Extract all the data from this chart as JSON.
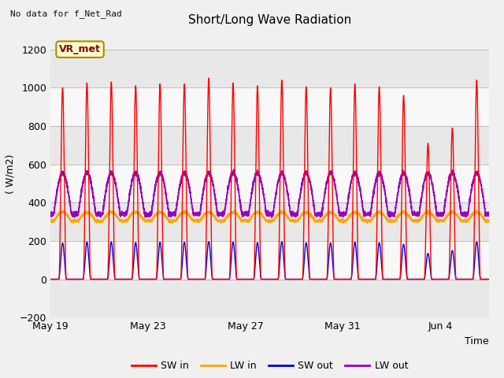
{
  "title": "Short/Long Wave Radiation",
  "xlabel": "Time",
  "ylabel": "( W/m2)",
  "top_left_text": "No data for f_Net_Rad",
  "legend_label": "VR_met",
  "ylim": [
    -200,
    1300
  ],
  "yticks": [
    -200,
    0,
    200,
    400,
    600,
    800,
    1000,
    1200
  ],
  "xtick_labels": [
    "May 19",
    "May 23",
    "May 27",
    "May 31",
    "Jun 4"
  ],
  "xtick_days": [
    0,
    4,
    8,
    12,
    16
  ],
  "n_days": 18,
  "colors": {
    "SW_in": "#ff0000",
    "LW_in": "#ffa500",
    "SW_out": "#0000dd",
    "LW_out": "#9900bb"
  },
  "SW_in_peaks": [
    1000,
    1025,
    1030,
    1010,
    1020,
    1020,
    1050,
    1025,
    1010,
    1040,
    1005,
    1000,
    1020,
    1005,
    960,
    710,
    790,
    1040
  ],
  "LW_in_base": 305,
  "LW_in_day_bump": 45,
  "SW_out_peak": 195,
  "LW_out_base": 340,
  "LW_out_day_bump": 215,
  "band_colors": [
    "#e8e8e8",
    "#f8f8f8"
  ],
  "fig_bg": "#f0f0f0",
  "figsize": [
    6.4,
    4.8
  ],
  "dpi": 100
}
